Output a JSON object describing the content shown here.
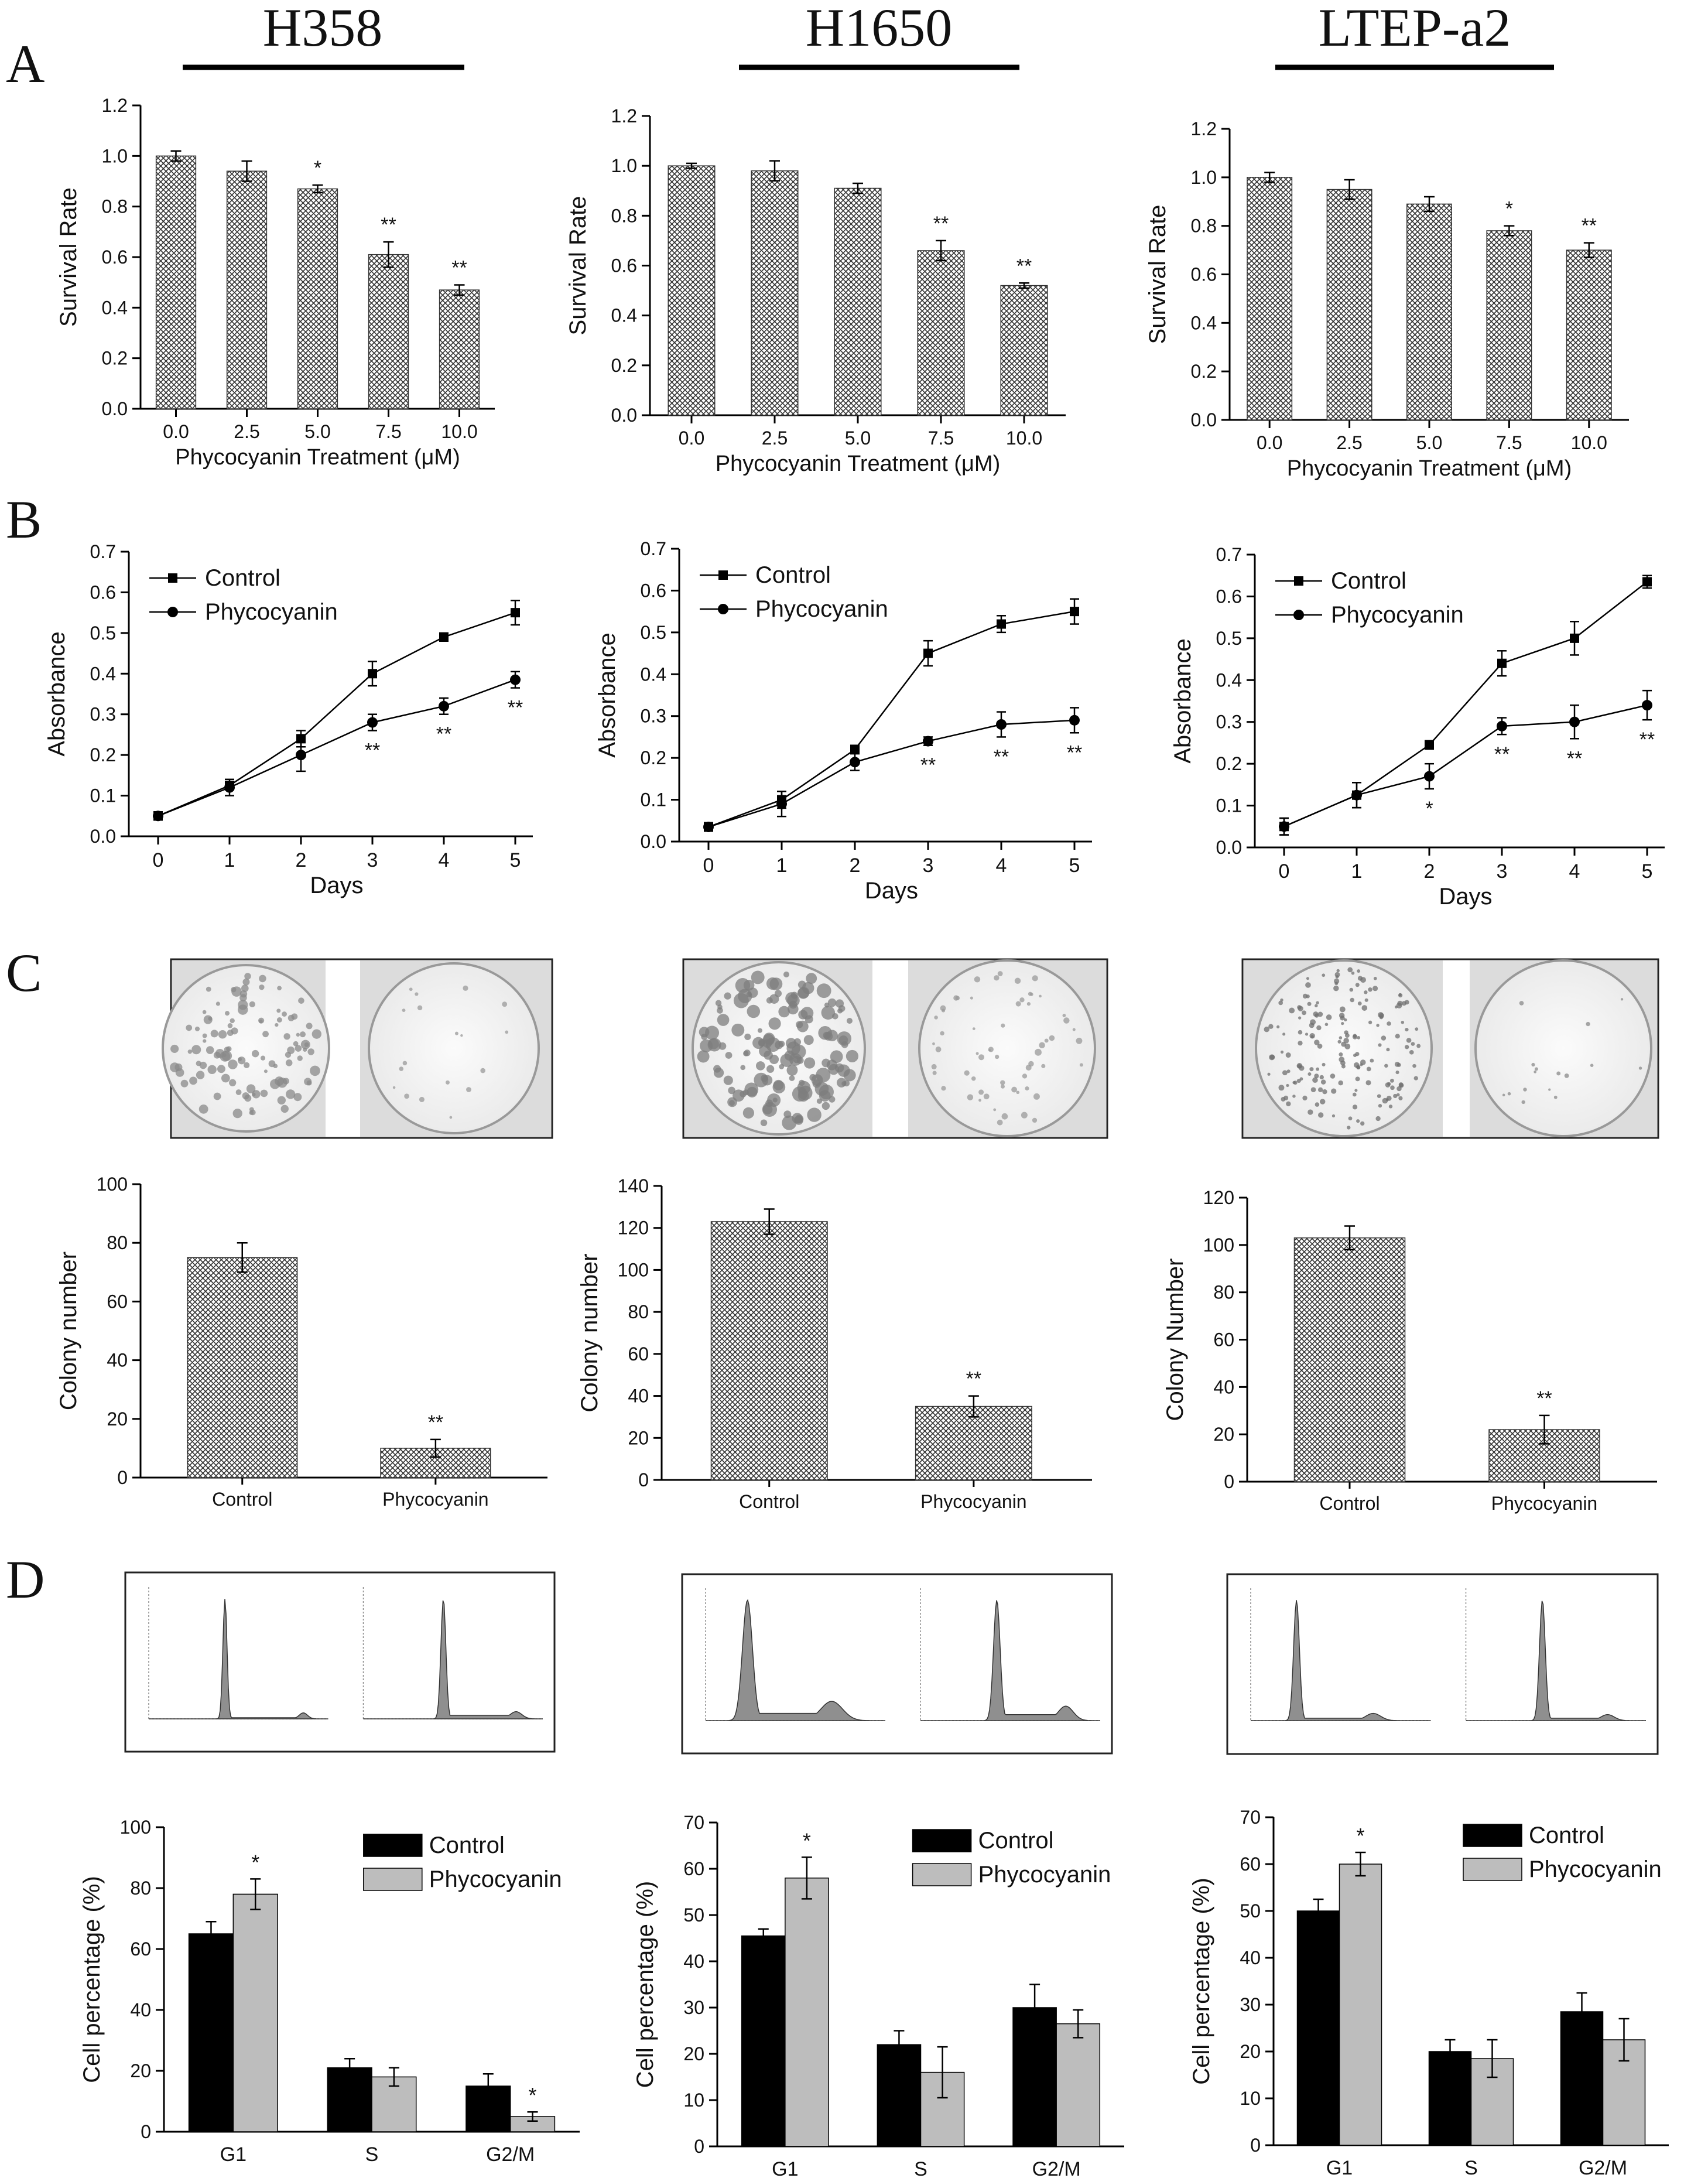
{
  "panel_labels": [
    "A",
    "B",
    "C",
    "D"
  ],
  "cell_lines": [
    "H358",
    "H1650",
    "LTEP-a2"
  ],
  "colors": {
    "control": "#000000",
    "phycocyanin": "#bdbdbd",
    "hatch": "#333333"
  },
  "chart_data": [
    {
      "id": "A-H358",
      "panel": "A",
      "type": "bar",
      "categories": [
        "0.0",
        "2.5",
        "5.0",
        "7.5",
        "10.0"
      ],
      "values": [
        1.0,
        0.94,
        0.87,
        0.61,
        0.47
      ],
      "errors": [
        0.02,
        0.04,
        0.015,
        0.05,
        0.02
      ],
      "sig": [
        "",
        "",
        "*",
        "**",
        "**"
      ],
      "ylabel": "Survival Rate",
      "xlabel": "Phycocyanin Treatment (μM)",
      "ylim": [
        0,
        1.2
      ],
      "yticks": [
        "0.0",
        "0.2",
        "0.4",
        "0.6",
        "0.8",
        "1.0",
        "1.2"
      ]
    },
    {
      "id": "A-H1650",
      "panel": "A",
      "type": "bar",
      "categories": [
        "0.0",
        "2.5",
        "5.0",
        "7.5",
        "10.0"
      ],
      "values": [
        1.0,
        0.98,
        0.91,
        0.66,
        0.52
      ],
      "errors": [
        0.01,
        0.04,
        0.02,
        0.04,
        0.01
      ],
      "sig": [
        "",
        "",
        "",
        "**",
        "**"
      ],
      "ylabel": "Survival Rate",
      "xlabel": "Phycocyanin Treatment (μM)",
      "ylim": [
        0,
        1.2
      ],
      "yticks": [
        "0.0",
        "0.2",
        "0.4",
        "0.6",
        "0.8",
        "1.0",
        "1.2"
      ]
    },
    {
      "id": "A-LTEP",
      "panel": "A",
      "type": "bar",
      "categories": [
        "0.0",
        "2.5",
        "5.0",
        "7.5",
        "10.0"
      ],
      "values": [
        1.0,
        0.95,
        0.89,
        0.78,
        0.7
      ],
      "errors": [
        0.02,
        0.04,
        0.03,
        0.02,
        0.03
      ],
      "sig": [
        "",
        "",
        "",
        "*",
        "**"
      ],
      "ylabel": "Survival Rate",
      "xlabel": "Phycocyanin Treatment (μM)",
      "ylim": [
        0,
        1.2
      ],
      "yticks": [
        "0.0",
        "0.2",
        "0.4",
        "0.6",
        "0.8",
        "1.0",
        "1.2"
      ]
    },
    {
      "id": "B-H358",
      "panel": "B",
      "type": "line",
      "x": [
        0,
        1,
        2,
        3,
        4,
        5
      ],
      "series": [
        {
          "name": "Control",
          "marker": "square",
          "values": [
            0.05,
            0.125,
            0.24,
            0.4,
            0.49,
            0.55
          ],
          "errors": [
            0.01,
            0.01,
            0.02,
            0.03,
            0.01,
            0.03
          ]
        },
        {
          "name": "Phycocyanin",
          "marker": "circle",
          "values": [
            0.05,
            0.12,
            0.2,
            0.28,
            0.32,
            0.385
          ],
          "errors": [
            0.01,
            0.02,
            0.04,
            0.02,
            0.02,
            0.02
          ]
        }
      ],
      "sig": [
        "",
        "",
        "",
        "**",
        "**",
        "**"
      ],
      "ylabel": "Absorbance",
      "xlabel": "Days",
      "ylim": [
        0,
        0.7
      ],
      "yticks": [
        "0.0",
        "0.1",
        "0.2",
        "0.3",
        "0.4",
        "0.5",
        "0.6",
        "0.7"
      ],
      "xticks": [
        "0",
        "1",
        "2",
        "3",
        "4",
        "5"
      ]
    },
    {
      "id": "B-H1650",
      "panel": "B",
      "type": "line",
      "x": [
        0,
        1,
        2,
        3,
        4,
        5
      ],
      "series": [
        {
          "name": "Control",
          "marker": "square",
          "values": [
            0.035,
            0.1,
            0.22,
            0.45,
            0.52,
            0.55
          ],
          "errors": [
            0.01,
            0.02,
            0.01,
            0.03,
            0.02,
            0.03
          ]
        },
        {
          "name": "Phycocyanin",
          "marker": "circle",
          "values": [
            0.035,
            0.09,
            0.19,
            0.24,
            0.28,
            0.29
          ],
          "errors": [
            0.01,
            0.03,
            0.02,
            0.01,
            0.03,
            0.03
          ]
        }
      ],
      "sig": [
        "",
        "",
        "",
        "**",
        "**",
        "**"
      ],
      "ylabel": "Absorbance",
      "xlabel": "Days",
      "ylim": [
        0,
        0.7
      ],
      "yticks": [
        "0.0",
        "0.1",
        "0.2",
        "0.3",
        "0.4",
        "0.5",
        "0.6",
        "0.7"
      ],
      "xticks": [
        "0",
        "1",
        "2",
        "3",
        "4",
        "5"
      ]
    },
    {
      "id": "B-LTEP",
      "panel": "B",
      "type": "line",
      "x": [
        0,
        1,
        2,
        3,
        4,
        5
      ],
      "series": [
        {
          "name": "Control",
          "marker": "square",
          "values": [
            0.05,
            0.125,
            0.245,
            0.44,
            0.5,
            0.635
          ],
          "errors": [
            0.02,
            0.03,
            0.01,
            0.03,
            0.04,
            0.015
          ]
        },
        {
          "name": "Phycocyanin",
          "marker": "circle",
          "values": [
            0.05,
            0.125,
            0.17,
            0.29,
            0.3,
            0.34
          ],
          "errors": [
            0.02,
            0.03,
            0.03,
            0.02,
            0.04,
            0.035
          ]
        }
      ],
      "sig": [
        "",
        "",
        "*",
        "**",
        "**",
        "**"
      ],
      "ylabel": "Absorbance",
      "xlabel": "Days",
      "ylim": [
        0,
        0.7
      ],
      "yticks": [
        "0.0",
        "0.1",
        "0.2",
        "0.3",
        "0.4",
        "0.5",
        "0.6",
        "0.7"
      ],
      "xticks": [
        "0",
        "1",
        "2",
        "3",
        "4",
        "5"
      ]
    },
    {
      "id": "C-H358",
      "panel": "C",
      "type": "bar",
      "categories": [
        "Control",
        "Phycocyanin"
      ],
      "values": [
        75,
        10
      ],
      "errors": [
        5,
        3
      ],
      "sig": [
        "",
        "**"
      ],
      "ylabel": "Colony number",
      "xlabel": "",
      "ylim": [
        0,
        100
      ],
      "yticks": [
        "0",
        "20",
        "40",
        "60",
        "80",
        "100"
      ]
    },
    {
      "id": "C-H1650",
      "panel": "C",
      "type": "bar",
      "categories": [
        "Control",
        "Phycocyanin"
      ],
      "values": [
        123,
        35
      ],
      "errors": [
        6,
        5
      ],
      "sig": [
        "",
        "**"
      ],
      "ylabel": "Colony number",
      "xlabel": "",
      "ylim": [
        0,
        140
      ],
      "yticks": [
        "0",
        "20",
        "40",
        "60",
        "80",
        "100",
        "120",
        "140"
      ]
    },
    {
      "id": "C-LTEP",
      "panel": "C",
      "type": "bar",
      "categories": [
        "Control",
        "Phycocyanin"
      ],
      "values": [
        103,
        22
      ],
      "errors": [
        5,
        6
      ],
      "sig": [
        "",
        "**"
      ],
      "ylabel": "Colony Number",
      "xlabel": "",
      "ylim": [
        0,
        120
      ],
      "yticks": [
        "0",
        "20",
        "40",
        "60",
        "80",
        "100",
        "120"
      ]
    },
    {
      "id": "D-H358",
      "panel": "D",
      "type": "bar",
      "categories": [
        "G1",
        "S",
        "G2/M"
      ],
      "series": [
        {
          "name": "Control",
          "values": [
            65,
            21,
            15
          ],
          "errors": [
            4,
            3,
            4
          ]
        },
        {
          "name": "Phycocyanin",
          "values": [
            78,
            18,
            5
          ],
          "errors": [
            5,
            3,
            1.5
          ]
        }
      ],
      "sig": [
        "*",
        "",
        "*"
      ],
      "ylabel": "Cell percentage (%)",
      "ylim": [
        0,
        100
      ],
      "yticks": [
        "0",
        "20",
        "40",
        "60",
        "80",
        "100"
      ]
    },
    {
      "id": "D-H1650",
      "panel": "D",
      "type": "bar",
      "categories": [
        "G1",
        "S",
        "G2/M"
      ],
      "series": [
        {
          "name": "Control",
          "values": [
            45.5,
            22,
            30
          ],
          "errors": [
            1.5,
            3,
            5
          ]
        },
        {
          "name": "Phycocyanin",
          "values": [
            58,
            16,
            26.5
          ],
          "errors": [
            4.5,
            5.5,
            3
          ]
        }
      ],
      "sig": [
        "*",
        "",
        ""
      ],
      "ylabel": "Cell percentage (%)",
      "ylim": [
        0,
        70
      ],
      "yticks": [
        "0",
        "10",
        "20",
        "30",
        "40",
        "50",
        "60",
        "70"
      ]
    },
    {
      "id": "D-LTEP",
      "panel": "D",
      "type": "bar",
      "categories": [
        "G1",
        "S",
        "G2/M"
      ],
      "series": [
        {
          "name": "Control",
          "values": [
            50,
            20,
            28.5
          ],
          "errors": [
            2.5,
            2.5,
            4
          ]
        },
        {
          "name": "Phycocyanin",
          "values": [
            60,
            18.5,
            22.5
          ],
          "errors": [
            2.5,
            4,
            4.5
          ]
        }
      ],
      "sig": [
        "*",
        "",
        ""
      ],
      "ylabel": "Cell percentage (%)",
      "ylim": [
        0,
        70
      ],
      "yticks": [
        "0",
        "10",
        "20",
        "30",
        "40",
        "50",
        "60",
        "70"
      ]
    }
  ]
}
